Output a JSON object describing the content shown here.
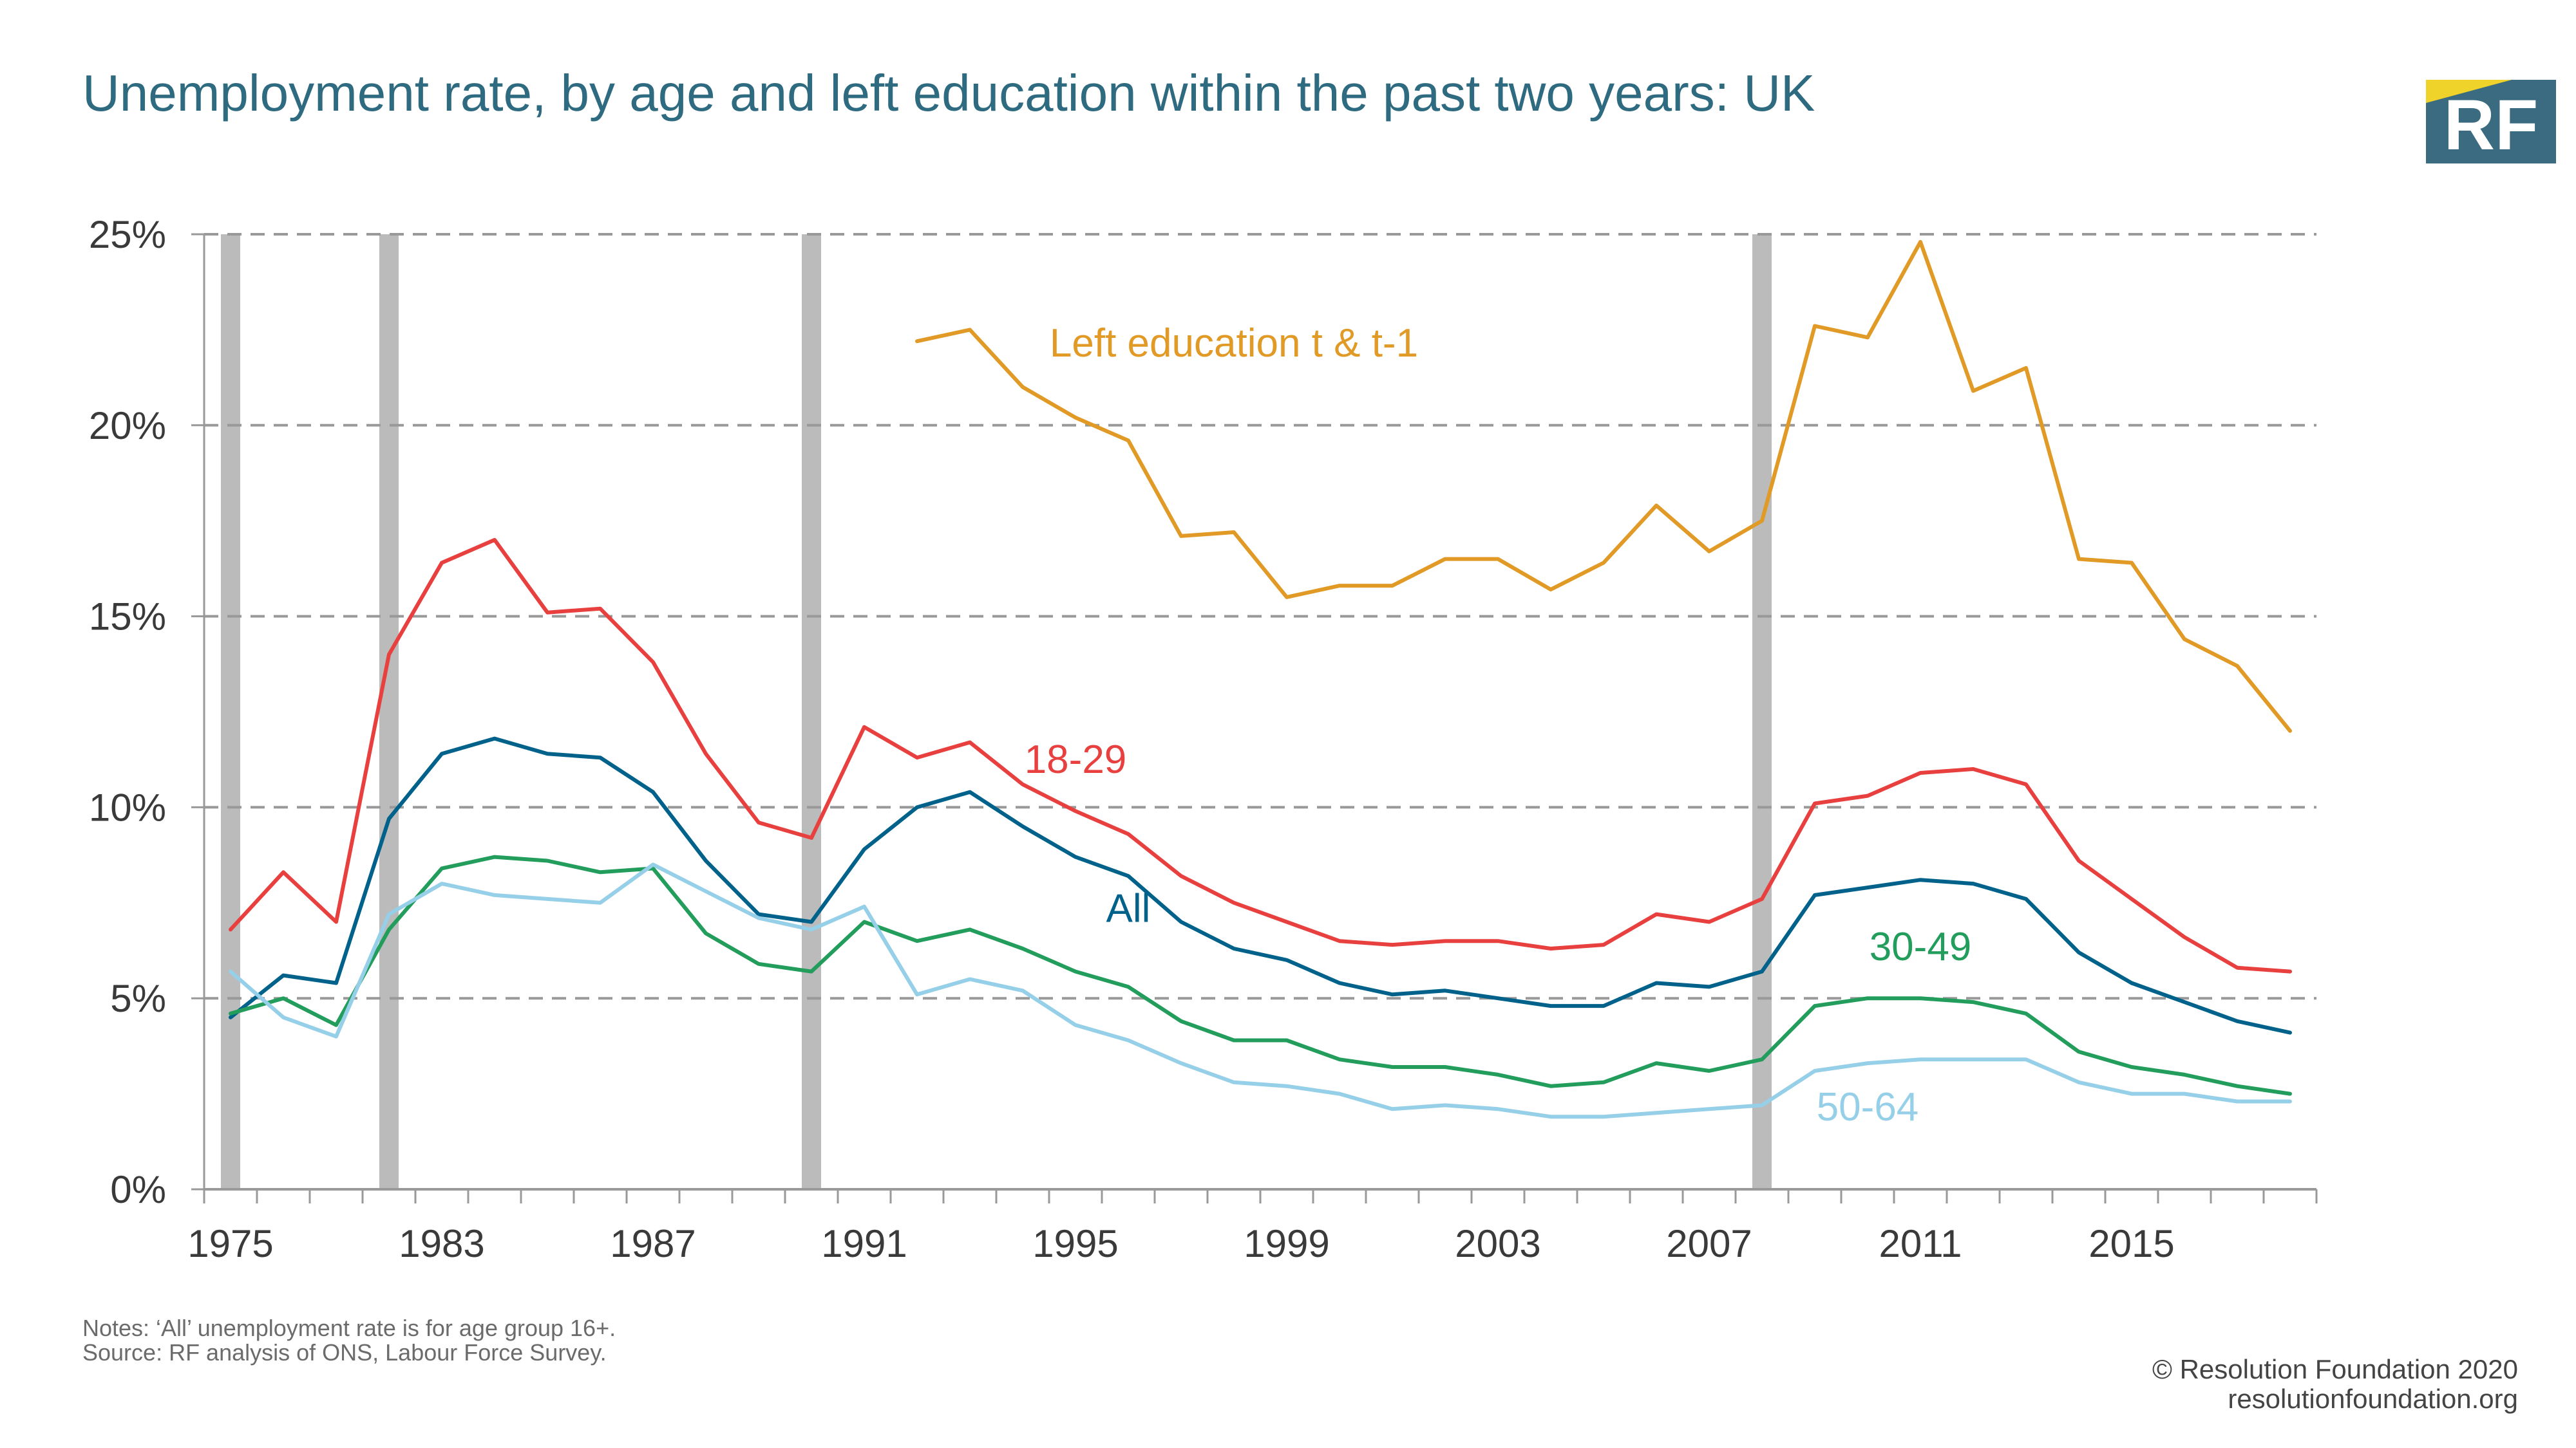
{
  "header": {
    "title": "Unemployment rate, by age and left education within the past two years: UK",
    "logo_text": "RF",
    "logo_colors": {
      "box": "#3a6b80",
      "accent": "#f0d32a"
    }
  },
  "footer": {
    "notes": "Notes: ‘All’ unemployment rate is for age group 16+.",
    "source": "Source: RF analysis of ONS, Labour Force Survey.",
    "copyright": "© Resolution Foundation 2020",
    "website": "resolutionfoundation.org"
  },
  "chart_data": {
    "type": "line",
    "title": "Unemployment rate, by age and left education within the past two years: UK",
    "xlabel": "",
    "ylabel": "",
    "ylim": [
      0,
      25
    ],
    "yticks": [
      0,
      5,
      10,
      15,
      20,
      25
    ],
    "ytick_labels": [
      "0%",
      "5%",
      "10%",
      "15%",
      "20%",
      "25%"
    ],
    "grid": "horizontal dashed",
    "legend": "inline labels",
    "x": [
      "1975",
      "1977",
      "1979",
      "1981",
      "1983",
      "1984",
      "1985",
      "1986",
      "1987",
      "1988",
      "1989",
      "1990",
      "1991",
      "1992",
      "1993",
      "1994",
      "1995",
      "1996",
      "1997",
      "1998",
      "1999",
      "2000",
      "2001",
      "2002",
      "2003",
      "2004",
      "2005",
      "2006",
      "2007",
      "2008",
      "2009",
      "2010",
      "2011",
      "2012",
      "2013",
      "2014",
      "2015",
      "2016",
      "2017",
      "2018"
    ],
    "xtick_labels": [
      "1975",
      "1983",
      "1987",
      "1991",
      "1995",
      "1999",
      "2003",
      "2007",
      "2011",
      "2015"
    ],
    "xtick_label_positions": [
      "1975",
      "1983",
      "1987",
      "1991",
      "1995",
      "1999",
      "2003",
      "2007",
      "2011",
      "2015"
    ],
    "recessions": [
      "1975",
      "1981",
      "1990",
      "2008"
    ],
    "recession_color": "#bbbbbb",
    "series": [
      {
        "name": "Left education t & t-1",
        "color": "#e09a25",
        "values": [
          null,
          null,
          null,
          null,
          null,
          null,
          null,
          null,
          null,
          null,
          null,
          null,
          null,
          22.2,
          22.5,
          21.0,
          20.2,
          19.6,
          17.1,
          17.2,
          15.5,
          15.8,
          15.8,
          16.5,
          16.5,
          15.7,
          16.4,
          17.9,
          16.7,
          17.5,
          22.6,
          22.3,
          24.8,
          20.9,
          21.5,
          16.5,
          16.4,
          14.4,
          13.7,
          12.0
        ]
      },
      {
        "name": "18-29",
        "color": "#e8403f",
        "values": [
          6.8,
          8.3,
          7.0,
          14.0,
          16.4,
          17.0,
          15.1,
          15.2,
          13.8,
          11.4,
          9.6,
          9.2,
          12.1,
          11.3,
          11.7,
          10.6,
          9.9,
          9.3,
          8.2,
          7.5,
          7.0,
          6.5,
          6.4,
          6.5,
          6.5,
          6.3,
          6.4,
          7.2,
          7.0,
          7.6,
          10.1,
          10.3,
          10.9,
          11.0,
          10.6,
          8.6,
          7.6,
          6.6,
          5.8,
          5.7
        ]
      },
      {
        "name": "All",
        "color": "#00628b",
        "values": [
          4.5,
          5.6,
          5.4,
          9.7,
          11.4,
          11.8,
          11.4,
          11.3,
          10.4,
          8.6,
          7.2,
          7.0,
          8.9,
          10.0,
          10.4,
          9.5,
          8.7,
          8.2,
          7.0,
          6.3,
          6.0,
          5.4,
          5.1,
          5.2,
          5.0,
          4.8,
          4.8,
          5.4,
          5.3,
          5.7,
          7.7,
          7.9,
          8.1,
          8.0,
          7.6,
          6.2,
          5.4,
          4.9,
          4.4,
          4.1
        ]
      },
      {
        "name": "30-49",
        "color": "#239d5c",
        "values": [
          4.6,
          5.0,
          4.3,
          6.8,
          8.4,
          8.7,
          8.6,
          8.3,
          8.4,
          6.7,
          5.9,
          5.7,
          7.0,
          6.5,
          6.8,
          6.3,
          5.7,
          5.3,
          4.4,
          3.9,
          3.9,
          3.4,
          3.2,
          3.2,
          3.0,
          2.7,
          2.8,
          3.3,
          3.1,
          3.4,
          4.8,
          5.0,
          5.0,
          4.9,
          4.6,
          3.6,
          3.2,
          3.0,
          2.7,
          2.5
        ]
      },
      {
        "name": "50-64",
        "color": "#96cfe8",
        "values": [
          5.7,
          4.5,
          4.0,
          7.2,
          8.0,
          7.7,
          7.6,
          7.5,
          8.5,
          7.8,
          7.1,
          6.8,
          7.4,
          5.1,
          5.5,
          5.2,
          4.3,
          3.9,
          3.3,
          2.8,
          2.7,
          2.5,
          2.1,
          2.2,
          2.1,
          1.9,
          1.9,
          2.0,
          2.1,
          2.2,
          3.1,
          3.3,
          3.4,
          3.4,
          3.4,
          2.8,
          2.5,
          2.5,
          2.3,
          2.3
        ]
      }
    ],
    "annotations": [
      {
        "text": "Left education t & t-1",
        "series": "Left education t & t-1",
        "x": "1998",
        "y": 21.8
      },
      {
        "text": "18-29",
        "series": "18-29",
        "x": "1995",
        "y": 10.9
      },
      {
        "text": "All",
        "series": "All",
        "x": "1996",
        "y": 7.0
      },
      {
        "text": "30-49",
        "series": "30-49",
        "x": "2011",
        "y": 6.0
      },
      {
        "text": "50-64",
        "series": "50-64",
        "x": "2010",
        "y": 1.8
      }
    ]
  }
}
